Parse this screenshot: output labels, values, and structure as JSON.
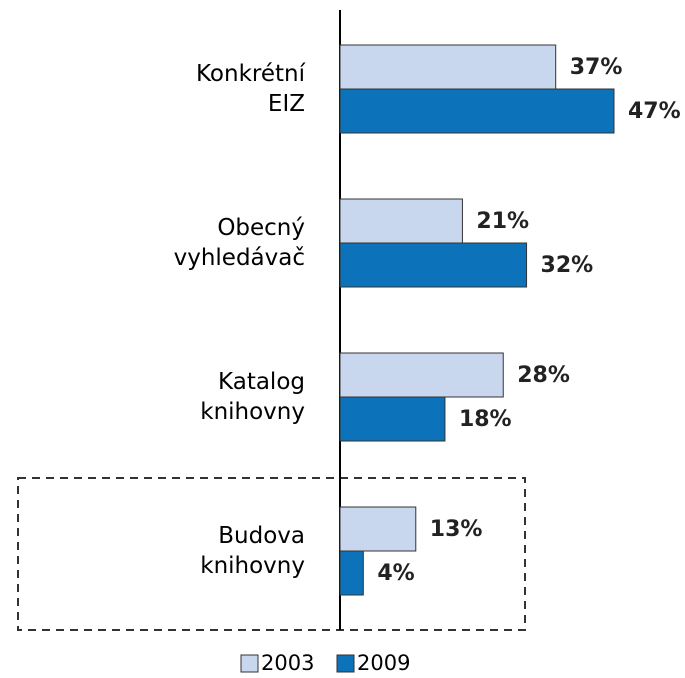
{
  "chart_data": {
    "type": "bar",
    "orientation": "horizontal",
    "categories": [
      "Konkrétní EIZ",
      "Obecný vyhledávač",
      "Katalog knihovny",
      "Budova knihovny"
    ],
    "series": [
      {
        "name": "2003",
        "color": "#c9d7ee",
        "values": [
          37,
          21,
          28,
          13
        ],
        "value_labels": [
          "37%",
          "21%",
          "28%",
          "13%"
        ]
      },
      {
        "name": "2009",
        "color": "#0c72b9",
        "values": [
          47,
          32,
          18,
          4
        ],
        "value_labels": [
          "47%",
          "32%",
          "18%",
          "4%"
        ]
      }
    ],
    "legend": "bottom"
  }
}
